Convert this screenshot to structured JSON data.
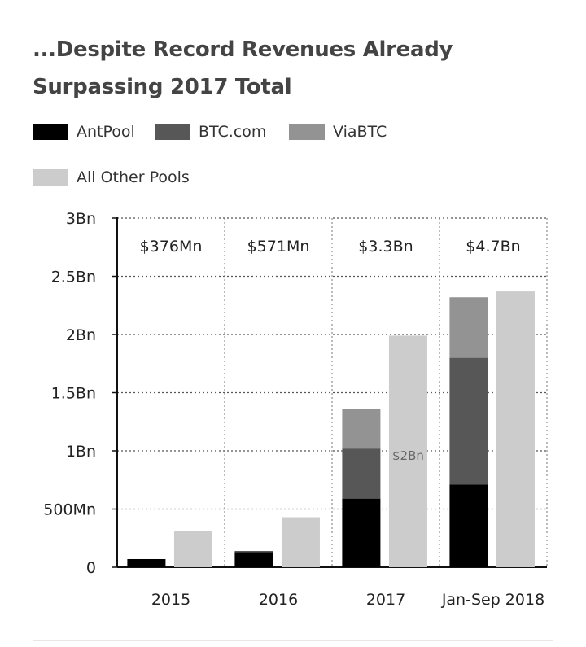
{
  "title": "...Despite Record Revenues Already Surpassing 2017 Total",
  "colors": {
    "AntPool": "#000000",
    "BTC.com": "#575757",
    "ViaBTC": "#939393",
    "All Other Pools": "#cccccc"
  },
  "chart_data": {
    "type": "bar",
    "stacked_group": [
      "AntPool",
      "BTC.com",
      "ViaBTC"
    ],
    "categories": [
      "2015",
      "2016",
      "2017",
      "Jan-Sep 2018"
    ],
    "series": [
      {
        "name": "AntPool",
        "values": [
          0.07,
          0.13,
          0.59,
          0.71
        ]
      },
      {
        "name": "BTC.com",
        "values": [
          0,
          0.01,
          0.43,
          1.09
        ]
      },
      {
        "name": "ViaBTC",
        "values": [
          0,
          0,
          0.34,
          0.52
        ]
      },
      {
        "name": "All Other Pools",
        "values": [
          0.31,
          0.43,
          1.99,
          2.37
        ]
      }
    ],
    "totals": [
      "$376Mn",
      "$571Mn",
      "$3.3Bn",
      "$4.7Bn"
    ],
    "annotations": [
      {
        "category": "2017",
        "series": "All Other Pools",
        "text": "$2Bn"
      }
    ],
    "yticks": [
      {
        "value": 0,
        "label": "0"
      },
      {
        "value": 0.5,
        "label": "500Mn"
      },
      {
        "value": 1,
        "label": "1Bn"
      },
      {
        "value": 1.5,
        "label": "1.5Bn"
      },
      {
        "value": 2,
        "label": "2Bn"
      },
      {
        "value": 2.5,
        "label": "2.5Bn"
      },
      {
        "value": 3,
        "label": "3Bn"
      }
    ],
    "ylim": [
      0,
      3
    ],
    "grid": true,
    "legend_position": "top"
  }
}
